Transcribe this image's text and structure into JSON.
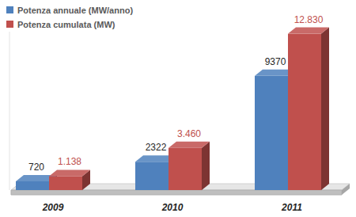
{
  "chart_data": {
    "type": "bar",
    "categories": [
      "2009",
      "2010",
      "2011"
    ],
    "series": [
      {
        "name": "Potenza annuale (MW/anno)",
        "color": "#4f81bd",
        "values": [
          720,
          2322,
          9370
        ]
      },
      {
        "name": "Potenza cumulata (MW)",
        "color": "#c0504d",
        "values": [
          1138,
          3460,
          12830
        ],
        "value_labels": [
          "1.138",
          "3.460",
          "12.830"
        ]
      }
    ],
    "ylim": [
      0,
      13000
    ],
    "data_labels": true,
    "tick_labels": "x",
    "legend": "top-left"
  }
}
